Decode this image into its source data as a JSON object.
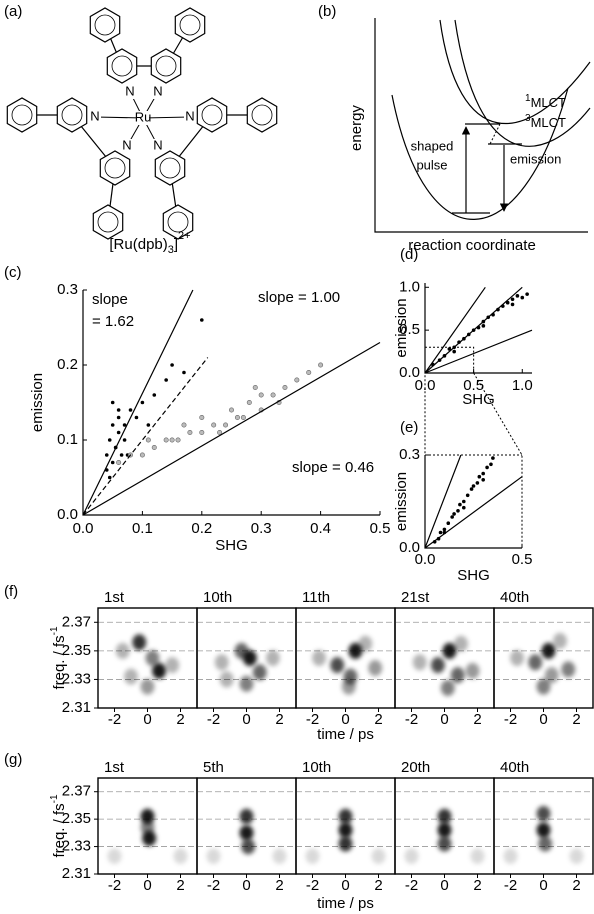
{
  "molecule": {
    "panel_label": "(a)",
    "atoms": [
      "N",
      "N",
      "Ru",
      "N",
      "N",
      "N",
      "N"
    ],
    "formula": {
      "main": "[Ru(dpb)",
      "sub": "3",
      "close": "]",
      "sup": "2+"
    }
  },
  "energy_diagram": {
    "panel_label": "(b)",
    "ylabel": "energy",
    "xlabel": "reaction coordinate",
    "state_1": {
      "sup": "1",
      "text": "MLCT"
    },
    "state_3": {
      "sup": "3",
      "text": "MLCT"
    },
    "excitation": [
      "shaped",
      "pulse"
    ],
    "emission": "emission"
  },
  "chart_data": [
    {
      "type": "scatter",
      "panel_label": "(c)",
      "xlabel": "SHG",
      "ylabel": "emission",
      "xlim": [
        0,
        0.5
      ],
      "ylim": [
        0,
        0.3
      ],
      "xticks": [
        {
          "value": 0,
          "label": "0.0"
        },
        0.1,
        0.2,
        0.3,
        0.4,
        0.5
      ],
      "yticks": [
        {
          "value": 0,
          "label": "0.0"
        },
        0.1,
        0.2,
        0.3
      ],
      "annotations": [
        "slope",
        "= 1.62",
        "slope = 1.00",
        "slope = 0.46"
      ],
      "series": [
        {
          "color": "#000000",
          "x": [
            0.04,
            0.045,
            0.05,
            0.05,
            0.055,
            0.06,
            0.06,
            0.065,
            0.07,
            0.04,
            0.05,
            0.06,
            0.07,
            0.08,
            0.09,
            0.1,
            0.12,
            0.14,
            0.15,
            0.17,
            0.2,
            0.11,
            0.045,
            0.055,
            0.075
          ],
          "values": [
            0.08,
            0.1,
            0.07,
            0.12,
            0.09,
            0.11,
            0.14,
            0.08,
            0.1,
            0.06,
            0.15,
            0.13,
            0.12,
            0.14,
            0.13,
            0.15,
            0.16,
            0.18,
            0.2,
            0.19,
            0.26,
            0.12,
            0.05,
            0.09,
            0.08
          ]
        },
        {
          "color": "#bbbbbb",
          "x": [
            0.06,
            0.08,
            0.1,
            0.12,
            0.14,
            0.15,
            0.16,
            0.18,
            0.2,
            0.2,
            0.22,
            0.24,
            0.25,
            0.26,
            0.28,
            0.3,
            0.3,
            0.32,
            0.34,
            0.36,
            0.38,
            0.4,
            0.11,
            0.17,
            0.23,
            0.27,
            0.33,
            0.29
          ],
          "values": [
            0.07,
            0.08,
            0.08,
            0.09,
            0.1,
            0.1,
            0.1,
            0.11,
            0.11,
            0.13,
            0.12,
            0.12,
            0.14,
            0.13,
            0.15,
            0.14,
            0.16,
            0.16,
            0.17,
            0.18,
            0.19,
            0.2,
            0.1,
            0.12,
            0.11,
            0.13,
            0.15,
            0.17
          ]
        },
        {
          "mode": "line",
          "style": "solid",
          "color": "#000000",
          "x": [
            0,
            0.185
          ],
          "values": [
            0,
            0.3
          ]
        },
        {
          "mode": "line",
          "style": "dashed",
          "color": "#000000",
          "x": [
            0,
            0.21
          ],
          "values": [
            0,
            0.21
          ]
        },
        {
          "mode": "line",
          "style": "solid",
          "color": "#000000",
          "x": [
            0,
            0.5
          ],
          "values": [
            0,
            0.23
          ]
        }
      ]
    },
    {
      "type": "scatter",
      "panel_label": "(d)",
      "xlabel": "SHG",
      "ylabel": "emission",
      "xlim": [
        0,
        1.1
      ],
      "ylim": [
        0,
        1.05
      ],
      "xticks": [
        {
          "value": 0,
          "label": "0.0"
        },
        0.5,
        {
          "value": 1,
          "label": "1.0"
        }
      ],
      "yticks": [
        {
          "value": 0,
          "label": "0.0"
        },
        0.5,
        {
          "value": 1,
          "label": "1.0"
        }
      ],
      "zoom_box": {
        "x": [
          0,
          0.5
        ],
        "y": [
          0,
          0.3
        ]
      },
      "series": [
        {
          "color": "#000000",
          "x": [
            0.08,
            0.15,
            0.2,
            0.25,
            0.3,
            0.35,
            0.4,
            0.45,
            0.5,
            0.55,
            0.6,
            0.65,
            0.7,
            0.75,
            0.8,
            0.85,
            0.9,
            0.95,
            1.0,
            1.05,
            0.3,
            0.6,
            0.9
          ],
          "values": [
            0.1,
            0.15,
            0.2,
            0.28,
            0.3,
            0.36,
            0.4,
            0.45,
            0.5,
            0.53,
            0.6,
            0.65,
            0.68,
            0.74,
            0.78,
            0.82,
            0.86,
            0.9,
            0.88,
            0.92,
            0.25,
            0.55,
            0.8
          ]
        },
        {
          "mode": "line",
          "style": "solid",
          "color": "#000000",
          "x": [
            0,
            0.62
          ],
          "values": [
            0,
            1.0
          ]
        },
        {
          "mode": "line",
          "style": "solid",
          "color": "#000000",
          "x": [
            0,
            1.0
          ],
          "values": [
            0,
            1.0
          ]
        },
        {
          "mode": "line",
          "style": "solid",
          "color": "#000000",
          "x": [
            0,
            1.1
          ],
          "values": [
            0,
            0.5
          ]
        }
      ]
    },
    {
      "type": "scatter",
      "panel_label": "(e)",
      "xlabel": "SHG",
      "ylabel": "emission",
      "xlim": [
        0,
        0.5
      ],
      "ylim": [
        0,
        0.3
      ],
      "xticks": [
        {
          "value": 0,
          "label": "0.0"
        },
        0.5
      ],
      "yticks": [
        {
          "value": 0,
          "label": "0.0"
        },
        0.3
      ],
      "series": [
        {
          "color": "#000000",
          "x": [
            0.05,
            0.07,
            0.08,
            0.1,
            0.12,
            0.14,
            0.15,
            0.17,
            0.18,
            0.2,
            0.22,
            0.24,
            0.25,
            0.27,
            0.28,
            0.3,
            0.32,
            0.34,
            0.35,
            0.1,
            0.2,
            0.3
          ],
          "values": [
            0.02,
            0.03,
            0.05,
            0.06,
            0.08,
            0.1,
            0.11,
            0.12,
            0.14,
            0.15,
            0.17,
            0.19,
            0.2,
            0.21,
            0.23,
            0.24,
            0.26,
            0.27,
            0.29,
            0.05,
            0.13,
            0.22
          ]
        },
        {
          "mode": "line",
          "style": "solid",
          "color": "#000000",
          "x": [
            0,
            0.185
          ],
          "values": [
            0,
            0.3
          ]
        },
        {
          "mode": "line",
          "style": "solid",
          "color": "#000000",
          "x": [
            0,
            0.5
          ],
          "values": [
            0,
            0.23
          ]
        }
      ]
    },
    {
      "type": "heatmap",
      "panel_label": "(f)",
      "xlabel": "time / ps",
      "ylabel": "freq. / fs",
      "ylabel_sup": "-1",
      "xlim": [
        -3,
        3
      ],
      "ylim": [
        2.31,
        2.38
      ],
      "xticks": [
        -2,
        0,
        2
      ],
      "yticks": [
        2.31,
        2.33,
        2.35,
        2.37
      ],
      "panels": [
        {
          "title": "1st",
          "x": [
            -0.5,
            0.7,
            0.3,
            -1.5,
            1.5,
            0,
            -1.0
          ],
          "y": [
            2.356,
            2.336,
            2.345,
            2.35,
            2.34,
            2.325,
            2.332
          ],
          "values": [
            0.8,
            0.9,
            0.5,
            0.3,
            0.3,
            0.4,
            0.3
          ]
        },
        {
          "title": "10th",
          "x": [
            0.2,
            -0.3,
            0.8,
            -1.5,
            1.6,
            0,
            -1.2
          ],
          "y": [
            2.345,
            2.35,
            2.335,
            2.342,
            2.345,
            2.327,
            2.33
          ],
          "values": [
            0.9,
            0.6,
            0.6,
            0.3,
            0.3,
            0.5,
            0.3
          ]
        },
        {
          "title": "11th",
          "x": [
            0.6,
            -0.5,
            0.3,
            1.8,
            -1.6,
            0.2,
            1.2
          ],
          "y": [
            2.35,
            2.34,
            2.332,
            2.338,
            2.345,
            2.325,
            2.355
          ],
          "values": [
            0.9,
            0.7,
            0.6,
            0.4,
            0.3,
            0.4,
            0.3
          ]
        },
        {
          "title": "21st",
          "x": [
            0.3,
            -0.4,
            0.8,
            -1.5,
            1.7,
            0.2,
            1.0
          ],
          "y": [
            2.35,
            2.34,
            2.333,
            2.342,
            2.336,
            2.324,
            2.355
          ],
          "values": [
            0.9,
            0.7,
            0.6,
            0.3,
            0.4,
            0.5,
            0.3
          ]
        },
        {
          "title": "40th",
          "x": [
            0.3,
            -0.5,
            1.5,
            -1.6,
            0.5,
            0,
            1.0
          ],
          "y": [
            2.35,
            2.342,
            2.337,
            2.345,
            2.333,
            2.325,
            2.357
          ],
          "values": [
            0.9,
            0.6,
            0.5,
            0.3,
            0.4,
            0.5,
            0.3
          ]
        }
      ]
    },
    {
      "type": "heatmap",
      "panel_label": "(g)",
      "xlabel": "time / ps",
      "ylabel": "freq. / fs",
      "ylabel_sup": "-1",
      "xlim": [
        -3,
        3
      ],
      "ylim": [
        2.31,
        2.38
      ],
      "xticks": [
        -2,
        0,
        2
      ],
      "yticks": [
        2.31,
        2.33,
        2.35,
        2.37
      ],
      "panels": [
        {
          "title": "1st",
          "x": [
            0,
            0.1,
            0,
            -2,
            2
          ],
          "y": [
            2.352,
            2.336,
            2.344,
            2.323,
            2.323
          ],
          "values": [
            0.9,
            0.9,
            0.5,
            0.15,
            0.15
          ]
        },
        {
          "title": "5th",
          "x": [
            0,
            0,
            0.1,
            -2,
            2
          ],
          "y": [
            2.352,
            2.34,
            2.33,
            2.323,
            2.323
          ],
          "values": [
            0.8,
            0.9,
            0.7,
            0.15,
            0.15
          ]
        },
        {
          "title": "10th",
          "x": [
            0,
            0,
            0,
            -2,
            2
          ],
          "y": [
            2.352,
            2.342,
            2.332,
            2.323,
            2.323
          ],
          "values": [
            0.8,
            0.9,
            0.8,
            0.15,
            0.15
          ]
        },
        {
          "title": "20th",
          "x": [
            0,
            0,
            0,
            -2,
            2
          ],
          "y": [
            2.352,
            2.342,
            2.332,
            2.323,
            2.323
          ],
          "values": [
            0.8,
            0.9,
            0.7,
            0.15,
            0.15
          ]
        },
        {
          "title": "40th",
          "x": [
            0,
            0,
            0.1,
            -2,
            2
          ],
          "y": [
            2.354,
            2.342,
            2.332,
            2.323,
            2.323
          ],
          "values": [
            0.7,
            0.9,
            0.6,
            0.15,
            0.15
          ]
        }
      ]
    }
  ]
}
